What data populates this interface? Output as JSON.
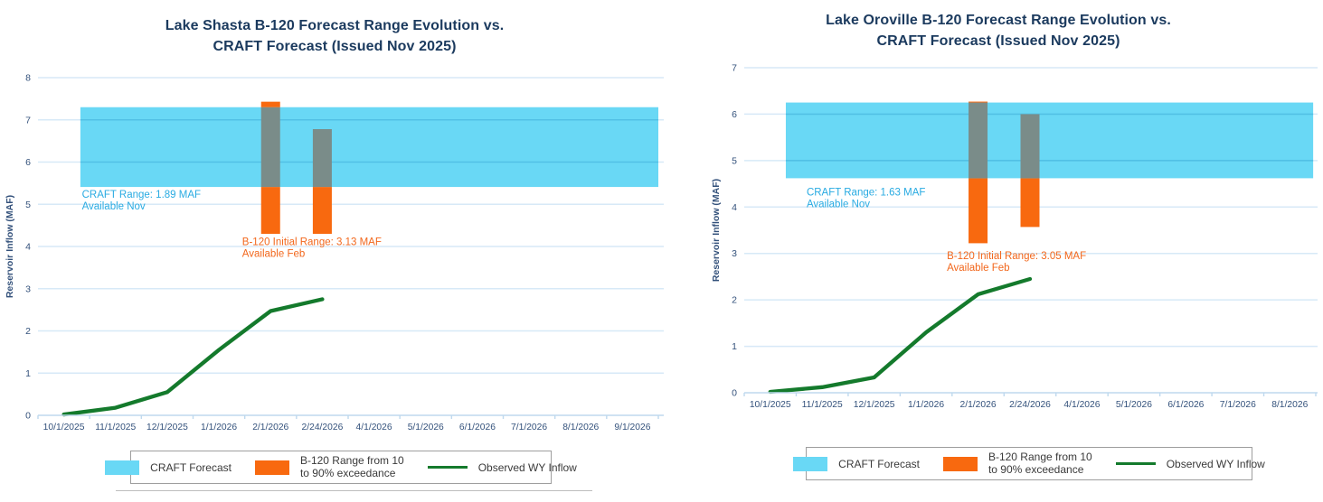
{
  "colors": {
    "band_blue": "#69D8F5",
    "bar_orange": "#F8690F",
    "bar_overlap_gray": "#7A8C89",
    "line_green": "#147A2C",
    "title_navy": "#1B3A5E",
    "axis_text": "#33517B",
    "gridline": "#D7E9F7",
    "axis_line": "#BFD9EE",
    "annotation_cyan": "#29ABE2",
    "annotation_orange": "#F2671C"
  },
  "legend": {
    "craft_label": "CRAFT Forecast",
    "b120_label_line1": "B-120 Range from 10",
    "b120_label_line2": "to 90% exceedance",
    "observed_label": "Observed WY Inflow"
  },
  "chart_data": [
    {
      "type": "combo-band-bar-line",
      "title_line1": "Lake Shasta B-120 Forecast Range Evolution vs.",
      "title_line2": "CRAFT Forecast (Issued Nov 2025)",
      "ylabel": "Reservoir Inflow (MAF)",
      "ylim": [
        0,
        8
      ],
      "grid": true,
      "categories": [
        "10/1/2025",
        "11/1/2025",
        "12/1/2025",
        "1/1/2026",
        "2/1/2026",
        "2/24/2026",
        "4/1/2026",
        "5/1/2026",
        "6/1/2026",
        "7/1/2026",
        "8/1/2026",
        "9/1/2026"
      ],
      "craft_band": {
        "low": 5.41,
        "high": 7.3,
        "from_index": 0.82,
        "to_index": 12.0,
        "range_maf": 1.89,
        "label_line1": "CRAFT Range: 1.89 MAF",
        "label_line2": "Available Nov",
        "label_anchor": {
          "index": 0.85,
          "value": 5.15
        }
      },
      "b120_bars": [
        {
          "category": "2/1/2026",
          "low": 4.3,
          "high": 7.43
        },
        {
          "category": "2/24/2026",
          "low": 4.3,
          "high": 6.78
        }
      ],
      "b120_range_maf": 3.13,
      "b120_label_line1": "B-120 Initial Range: 3.13 MAF",
      "b120_label_line2": "Available Feb",
      "b120_label_anchor": {
        "index": 3.95,
        "value": 4.03
      },
      "observed_line": {
        "categories": [
          "10/1/2025",
          "11/1/2025",
          "12/1/2025",
          "1/1/2026",
          "2/1/2026",
          "2/24/2026"
        ],
        "values": [
          0.02,
          0.18,
          0.55,
          1.55,
          2.47,
          2.75
        ]
      }
    },
    {
      "type": "combo-band-bar-line",
      "title_line1": "Lake Oroville B-120 Forecast Range Evolution vs.",
      "title_line2": "CRAFT Forecast (Issued Nov 2025)",
      "ylabel": "Reservoir Inflow (MAF)",
      "ylim": [
        0,
        7
      ],
      "grid": true,
      "categories": [
        "10/1/2025",
        "11/1/2025",
        "12/1/2025",
        "1/1/2026",
        "2/1/2026",
        "2/24/2026",
        "4/1/2026",
        "5/1/2026",
        "6/1/2026",
        "7/1/2026",
        "8/1/2026"
      ],
      "craft_band": {
        "low": 4.62,
        "high": 6.25,
        "from_index": 0.8,
        "to_index": 10.95,
        "range_maf": 1.63,
        "label_line1": "CRAFT Range: 1.63 MAF",
        "label_line2": "Available Nov",
        "label_anchor": {
          "index": 1.2,
          "value": 4.25
        }
      },
      "b120_bars": [
        {
          "category": "2/1/2026",
          "low": 3.22,
          "high": 6.27
        },
        {
          "category": "2/24/2026",
          "low": 3.57,
          "high": 6.0
        }
      ],
      "b120_range_maf": 3.05,
      "b120_label_line1": "B-120 Initial Range: 3.05 MAF",
      "b120_label_line2": "Available Feb",
      "b120_label_anchor": {
        "index": 3.9,
        "value": 2.88
      },
      "observed_line": {
        "categories": [
          "10/1/2025",
          "11/1/2025",
          "12/1/2025",
          "1/1/2026",
          "2/1/2026",
          "2/24/2026"
        ],
        "values": [
          0.02,
          0.12,
          0.33,
          1.3,
          2.12,
          2.45
        ]
      }
    }
  ]
}
